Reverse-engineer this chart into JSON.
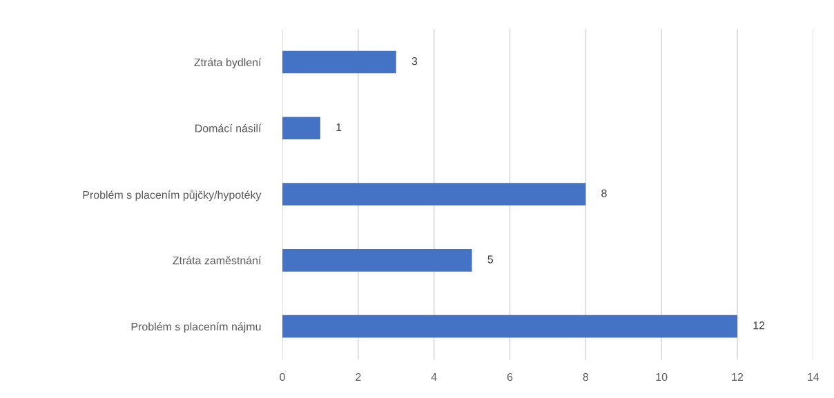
{
  "chart_data": {
    "type": "bar",
    "orientation": "horizontal",
    "categories": [
      "Ztráta bydlení",
      "Domácí násilí",
      "Problém s placením půjčky/hypotéky",
      "Ztráta zaměstnání",
      "Problém s placením nájmu"
    ],
    "values": [
      3,
      1,
      8,
      5,
      12
    ],
    "color": "#4472c4",
    "xlim": [
      0,
      14
    ],
    "xticks": [
      0,
      2,
      4,
      6,
      8,
      10,
      12,
      14
    ],
    "grid": "x",
    "data_labels": true,
    "legend": false
  }
}
